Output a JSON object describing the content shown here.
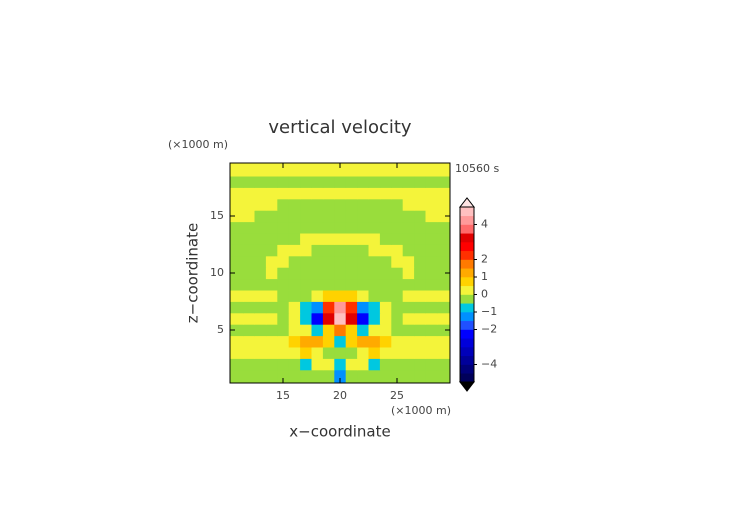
{
  "chart_data": {
    "type": "contour",
    "title": "vertical velocity",
    "xlabel": "x−coordinate",
    "ylabel": "z−coordinate",
    "x_unit": "(×1000 m)",
    "y_unit": "(×1000 m)",
    "time_label": "10560 s",
    "xlim": [
      10.35,
      29.65
    ],
    "ylim": [
      0.35,
      19.65
    ],
    "xticks": [
      15,
      20,
      25
    ],
    "yticks": [
      5,
      10,
      15
    ],
    "x": [
      11,
      12,
      13,
      14,
      15,
      16,
      17,
      18,
      19,
      20,
      21,
      22,
      23,
      24,
      25,
      26,
      27,
      28,
      29
    ],
    "z": [
      1,
      2,
      3,
      4,
      5,
      6,
      7,
      8,
      9,
      10,
      11,
      12,
      13,
      14,
      15,
      16,
      17,
      18,
      19
    ],
    "values": [
      [
        -0.2,
        -0.2,
        -0.2,
        -0.2,
        -0.2,
        -0.2,
        -0.2,
        -0.2,
        -0.2,
        -1.2,
        -0.2,
        -0.2,
        -0.2,
        -0.2,
        -0.2,
        -0.2,
        -0.2,
        -0.2,
        -0.2
      ],
      [
        -0.2,
        -0.2,
        -0.2,
        -0.2,
        -0.2,
        -0.2,
        -0.7,
        0.2,
        0.3,
        -0.8,
        0.3,
        0.2,
        -0.7,
        -0.2,
        -0.2,
        -0.2,
        -0.2,
        -0.2,
        -0.2
      ],
      [
        0.2,
        0.2,
        0.2,
        0.2,
        0.2,
        0.4,
        0.8,
        0.3,
        -0.2,
        -0.4,
        -0.2,
        0.3,
        0.8,
        0.4,
        0.2,
        0.2,
        0.2,
        0.2,
        0.2
      ],
      [
        0.2,
        0.2,
        0.2,
        0.2,
        0.2,
        0.6,
        1.2,
        1.4,
        0.6,
        -0.7,
        0.6,
        1.4,
        1.2,
        0.6,
        0.2,
        0.2,
        0.2,
        0.2,
        0.2
      ],
      [
        -0.2,
        -0.2,
        -0.2,
        -0.2,
        -0.2,
        0.2,
        0.3,
        -0.7,
        0.8,
        1.6,
        0.8,
        -0.7,
        0.3,
        0.2,
        -0.2,
        -0.2,
        -0.2,
        -0.2,
        -0.2
      ],
      [
        0.2,
        0.2,
        0.2,
        0.2,
        -0.2,
        0.2,
        -0.8,
        -2.5,
        3,
        4.8,
        3,
        -2.5,
        -0.8,
        0.2,
        -0.2,
        0.2,
        0.2,
        0.2,
        0.2
      ],
      [
        -0.2,
        -0.2,
        -0.2,
        -0.2,
        -0.2,
        0.2,
        -0.6,
        -1.5,
        2.2,
        4.2,
        2.2,
        -1.5,
        -0.6,
        0.2,
        -0.2,
        -0.2,
        -0.2,
        -0.2,
        -0.2
      ],
      [
        0.2,
        0.2,
        0.2,
        0.2,
        -0.2,
        -0.2,
        -0.2,
        0.2,
        0.6,
        0.8,
        0.6,
        0.2,
        -0.2,
        -0.2,
        -0.2,
        0.2,
        0.2,
        0.2,
        0.2
      ],
      [
        -0.2,
        -0.2,
        -0.2,
        -0.2,
        -0.2,
        -0.2,
        -0.2,
        -0.2,
        -0.2,
        -0.2,
        -0.2,
        -0.2,
        -0.2,
        -0.2,
        -0.2,
        -0.2,
        -0.2,
        -0.2,
        -0.2
      ],
      [
        -0.2,
        -0.2,
        -0.2,
        0.2,
        -0.2,
        -0.2,
        -0.2,
        -0.2,
        -0.2,
        -0.2,
        -0.2,
        -0.2,
        -0.2,
        -0.2,
        -0.2,
        0.2,
        -0.2,
        -0.2,
        -0.2
      ],
      [
        -0.2,
        -0.2,
        -0.2,
        0.2,
        0.2,
        -0.2,
        -0.2,
        -0.2,
        -0.2,
        -0.2,
        -0.2,
        -0.2,
        -0.2,
        -0.2,
        0.2,
        0.2,
        -0.2,
        -0.2,
        -0.2
      ],
      [
        -0.2,
        -0.2,
        -0.2,
        -0.2,
        0.2,
        0.2,
        0.2,
        -0.2,
        -0.2,
        -0.2,
        -0.2,
        -0.2,
        0.2,
        0.2,
        0.2,
        -0.2,
        -0.2,
        -0.2,
        -0.2
      ],
      [
        -0.2,
        -0.2,
        -0.2,
        -0.2,
        -0.2,
        -0.2,
        0.2,
        0.2,
        0.2,
        0.2,
        0.2,
        0.2,
        0.2,
        -0.2,
        -0.2,
        -0.2,
        -0.2,
        -0.2,
        -0.2
      ],
      [
        -0.2,
        -0.2,
        -0.2,
        -0.2,
        -0.2,
        -0.2,
        -0.2,
        -0.2,
        -0.2,
        -0.2,
        -0.2,
        -0.2,
        -0.2,
        -0.2,
        -0.2,
        -0.2,
        -0.2,
        -0.2,
        -0.2
      ],
      [
        0.2,
        0.2,
        -0.2,
        -0.2,
        -0.2,
        -0.2,
        -0.2,
        -0.2,
        -0.2,
        -0.2,
        -0.2,
        -0.2,
        -0.2,
        -0.2,
        -0.2,
        -0.2,
        -0.2,
        0.2,
        0.2
      ],
      [
        0.2,
        0.2,
        0.2,
        0.2,
        -0.2,
        -0.2,
        -0.2,
        -0.2,
        -0.2,
        -0.2,
        -0.2,
        -0.2,
        -0.2,
        -0.2,
        -0.2,
        0.2,
        0.2,
        0.2,
        0.2
      ],
      [
        0.2,
        0.2,
        0.2,
        0.2,
        0.2,
        0.2,
        0.2,
        0.2,
        0.2,
        0.2,
        0.2,
        0.2,
        0.2,
        0.2,
        0.2,
        0.2,
        0.2,
        0.2,
        0.2
      ],
      [
        -0.2,
        -0.2,
        -0.2,
        -0.2,
        -0.2,
        -0.2,
        -0.2,
        -0.2,
        -0.2,
        -0.2,
        -0.2,
        -0.2,
        -0.2,
        -0.2,
        -0.2,
        -0.2,
        -0.2,
        -0.2,
        -0.2
      ],
      [
        0.2,
        0.2,
        0.2,
        0.2,
        0.2,
        0.2,
        0.2,
        0.2,
        0.2,
        0.2,
        0.2,
        0.2,
        0.2,
        0.2,
        0.2,
        0.2,
        0.2,
        0.2,
        0.2
      ]
    ],
    "colorbar": {
      "levels": [
        -5,
        -4.5,
        -4,
        -3.5,
        -3,
        -2.5,
        -2,
        -1.5,
        -1,
        -0.5,
        0,
        0.5,
        1,
        1.5,
        2,
        2.5,
        3,
        3.5,
        4,
        4.5,
        5
      ],
      "colors": [
        "#00005a",
        "#00007a",
        "#00009a",
        "#0000ba",
        "#0000da",
        "#0000ff",
        "#2050ff",
        "#0090ff",
        "#00c8e0",
        "#99dd3c",
        "#f4f43a",
        "#ffd200",
        "#ffaa00",
        "#ff7a00",
        "#ff3000",
        "#ff0000",
        "#e00000",
        "#ff6a6a",
        "#ff9a9a",
        "#ffc0c0"
      ],
      "extend_colors": [
        "#000000",
        "#ffe4e4"
      ],
      "ticks": [
        {
          "value": -4,
          "label": "−4"
        },
        {
          "value": -2,
          "label": "−2"
        },
        {
          "value": -1,
          "label": "−1"
        },
        0,
        1,
        2,
        4
      ]
    }
  }
}
